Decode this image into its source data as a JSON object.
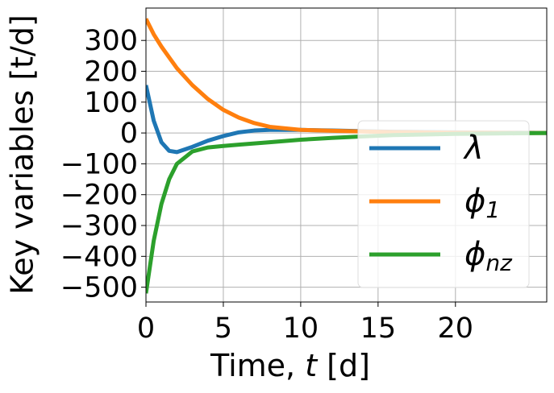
{
  "chart_data": {
    "type": "line",
    "xlabel": "Time, t [d]",
    "ylabel": "Key variables [t/d]",
    "x": [
      0,
      0.5,
      1,
      1.5,
      2,
      3,
      4,
      5,
      6,
      7,
      8,
      10,
      12,
      14,
      16,
      18,
      20,
      22,
      24,
      25.9
    ],
    "series": [
      {
        "name": "λ",
        "color": "#1f77b4",
        "values": [
          155,
          40,
          -30,
          -58,
          -62,
          -45,
          -25,
          -10,
          2,
          8,
          10,
          10,
          8,
          6,
          4,
          3,
          2,
          1,
          1,
          0
        ]
      },
      {
        "name": "ϕ1",
        "color": "#ff7f0e",
        "values": [
          370,
          320,
          280,
          245,
          210,
          155,
          110,
          75,
          50,
          32,
          20,
          10,
          7,
          5,
          3,
          2,
          1,
          1,
          0,
          0
        ]
      },
      {
        "name": "ϕnz",
        "color": "#2ca02c",
        "values": [
          -520,
          -350,
          -230,
          -150,
          -100,
          -60,
          -47,
          -42,
          -38,
          -34,
          -30,
          -22,
          -16,
          -11,
          -7,
          -5,
          -3,
          -2,
          -1,
          0
        ]
      }
    ],
    "xlim": [
      0,
      25.9
    ],
    "ylim": [
      -548,
      405
    ],
    "xticks": [
      0,
      5,
      10,
      15,
      20
    ],
    "yticks": [
      300,
      200,
      100,
      0,
      {
        "value": -100,
        "label": "−100"
      },
      {
        "value": -200,
        "label": "−200"
      },
      {
        "value": -300,
        "label": "−300"
      },
      {
        "value": -400,
        "label": "−400"
      },
      {
        "value": -500,
        "label": "−500"
      }
    ],
    "grid": true,
    "legend": "lower right"
  }
}
